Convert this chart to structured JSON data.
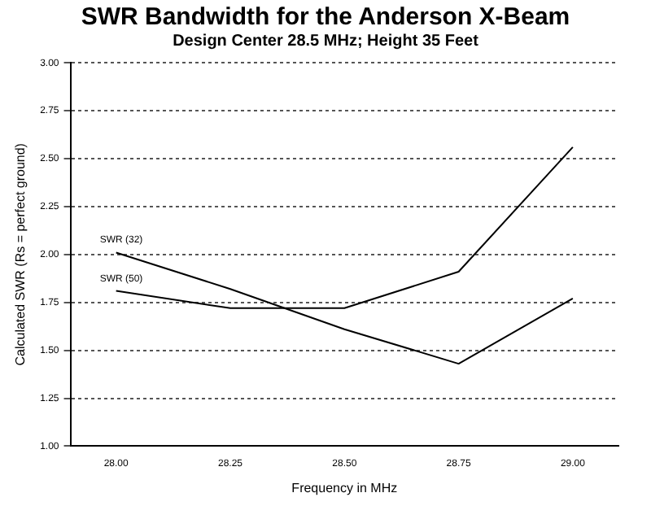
{
  "chart_data": {
    "type": "line",
    "title": "SWR Bandwidth for the Anderson X-Beam",
    "subtitle": "Design Center 28.5 MHz; Height 35 Feet",
    "xlabel": "Frequency in MHz",
    "ylabel": "Calculated SWR (Rs = perfect ground)",
    "x": [
      28.0,
      28.25,
      28.5,
      28.75,
      29.0
    ],
    "series": [
      {
        "name": "SWR (32)",
        "color": "#000000",
        "values": [
          2.01,
          1.82,
          1.61,
          1.43,
          1.77
        ]
      },
      {
        "name": "SWR (50)",
        "color": "#000000",
        "values": [
          1.81,
          1.72,
          1.72,
          1.91,
          2.56
        ]
      }
    ],
    "xlim": [
      27.9,
      29.1
    ],
    "xticks": [
      {
        "value": 28.0,
        "label": "28.00"
      },
      {
        "value": 28.25,
        "label": "28.25"
      },
      {
        "value": 28.5,
        "label": "28.50"
      },
      {
        "value": 28.75,
        "label": "28.75"
      },
      {
        "value": 29.0,
        "label": "29.00"
      }
    ],
    "ylim": [
      1.0,
      3.0
    ],
    "yticks": [
      {
        "value": 1.0,
        "label": "1.00"
      },
      {
        "value": 1.25,
        "label": "1.25"
      },
      {
        "value": 1.5,
        "label": "1.50"
      },
      {
        "value": 1.75,
        "label": "1.75"
      },
      {
        "value": 2.0,
        "label": "2.00"
      },
      {
        "value": 2.25,
        "label": "2.25"
      },
      {
        "value": 2.5,
        "label": "2.50"
      },
      {
        "value": 2.75,
        "label": "2.75"
      },
      {
        "value": 3.0,
        "label": "3.00"
      }
    ],
    "grid": "y",
    "legend": false,
    "marker": "none",
    "line_style": "solid"
  }
}
